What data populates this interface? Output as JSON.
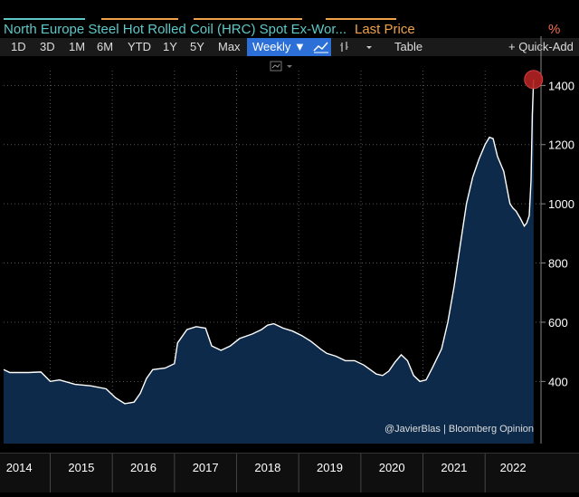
{
  "legend": {
    "title": "North Europe Steel Hot Rolled Coil (HRC) Spot Ex-Wor...",
    "last_price_label": "Last Price",
    "unit": "%"
  },
  "toolbar": {
    "ranges": [
      "1D",
      "3D",
      "1M",
      "6M",
      "YTD",
      "1Y",
      "5Y",
      "Max"
    ],
    "frequency": "Weekly ▼",
    "table_label": "Table",
    "quick_add_label": "+ Quick-Add",
    "chart_icon": "line-chart-icon",
    "compare_icon": "bar-compare-icon",
    "dropdown_icon": "caret-down-icon",
    "sub_icon": "chart-style-icon"
  },
  "watermark": "@JavierBlas | Bloomberg Opinion",
  "colors": {
    "fill": "#0d2a4a",
    "line": "#ffffff",
    "last_marker": "#b22222",
    "title": "#5ec8c8",
    "last_price": "#f0a24a",
    "active_button": "#2c6fd6"
  },
  "chart_data": {
    "type": "area",
    "title": "North Europe Steel Hot Rolled Coil (HRC) Spot Ex-Wor...",
    "ylim": [
      190,
      1450
    ],
    "xlim": [
      2013.8,
      2022.45
    ],
    "y_ticks": [
      400,
      600,
      800,
      1000,
      1200,
      1400
    ],
    "x_tick_labels": [
      "2014",
      "2015",
      "2016",
      "2017",
      "2018",
      "2019",
      "2020",
      "2021",
      "2022"
    ],
    "x_tick_positions": [
      2014,
      2015,
      2016,
      2017,
      2018,
      2019,
      2020,
      2021,
      2022
    ],
    "grid": true,
    "y_axis_side": "right",
    "points": [
      [
        2013.8,
        440
      ],
      [
        2013.9,
        430
      ],
      [
        2014.2,
        430
      ],
      [
        2014.4,
        432
      ],
      [
        2014.55,
        400
      ],
      [
        2014.7,
        405
      ],
      [
        2014.95,
        390
      ],
      [
        2015.2,
        385
      ],
      [
        2015.45,
        375
      ],
      [
        2015.6,
        345
      ],
      [
        2015.75,
        325
      ],
      [
        2015.9,
        330
      ],
      [
        2016.0,
        360
      ],
      [
        2016.1,
        410
      ],
      [
        2016.2,
        440
      ],
      [
        2016.4,
        445
      ],
      [
        2016.55,
        460
      ],
      [
        2016.6,
        530
      ],
      [
        2016.75,
        575
      ],
      [
        2016.9,
        585
      ],
      [
        2017.05,
        580
      ],
      [
        2017.15,
        520
      ],
      [
        2017.3,
        505
      ],
      [
        2017.45,
        520
      ],
      [
        2017.6,
        545
      ],
      [
        2017.8,
        560
      ],
      [
        2017.95,
        575
      ],
      [
        2018.05,
        590
      ],
      [
        2018.15,
        595
      ],
      [
        2018.3,
        580
      ],
      [
        2018.45,
        570
      ],
      [
        2018.6,
        555
      ],
      [
        2018.75,
        535
      ],
      [
        2018.9,
        510
      ],
      [
        2019.0,
        495
      ],
      [
        2019.15,
        485
      ],
      [
        2019.3,
        470
      ],
      [
        2019.45,
        470
      ],
      [
        2019.6,
        455
      ],
      [
        2019.8,
        425
      ],
      [
        2019.9,
        420
      ],
      [
        2020.0,
        435
      ],
      [
        2020.1,
        465
      ],
      [
        2020.2,
        490
      ],
      [
        2020.3,
        470
      ],
      [
        2020.4,
        420
      ],
      [
        2020.5,
        400
      ],
      [
        2020.6,
        405
      ],
      [
        2020.7,
        445
      ],
      [
        2020.85,
        510
      ],
      [
        2020.95,
        600
      ],
      [
        2021.05,
        720
      ],
      [
        2021.15,
        860
      ],
      [
        2021.25,
        1000
      ],
      [
        2021.35,
        1090
      ],
      [
        2021.45,
        1150
      ],
      [
        2021.55,
        1200
      ],
      [
        2021.62,
        1225
      ],
      [
        2021.68,
        1220
      ],
      [
        2021.75,
        1160
      ],
      [
        2021.85,
        1110
      ],
      [
        2021.95,
        1000
      ],
      [
        2022.0,
        985
      ],
      [
        2022.05,
        975
      ],
      [
        2022.12,
        950
      ],
      [
        2022.18,
        925
      ],
      [
        2022.22,
        935
      ],
      [
        2022.26,
        960
      ],
      [
        2022.29,
        1080
      ],
      [
        2022.31,
        1300
      ],
      [
        2022.33,
        1420
      ]
    ],
    "last_value": 1420
  }
}
